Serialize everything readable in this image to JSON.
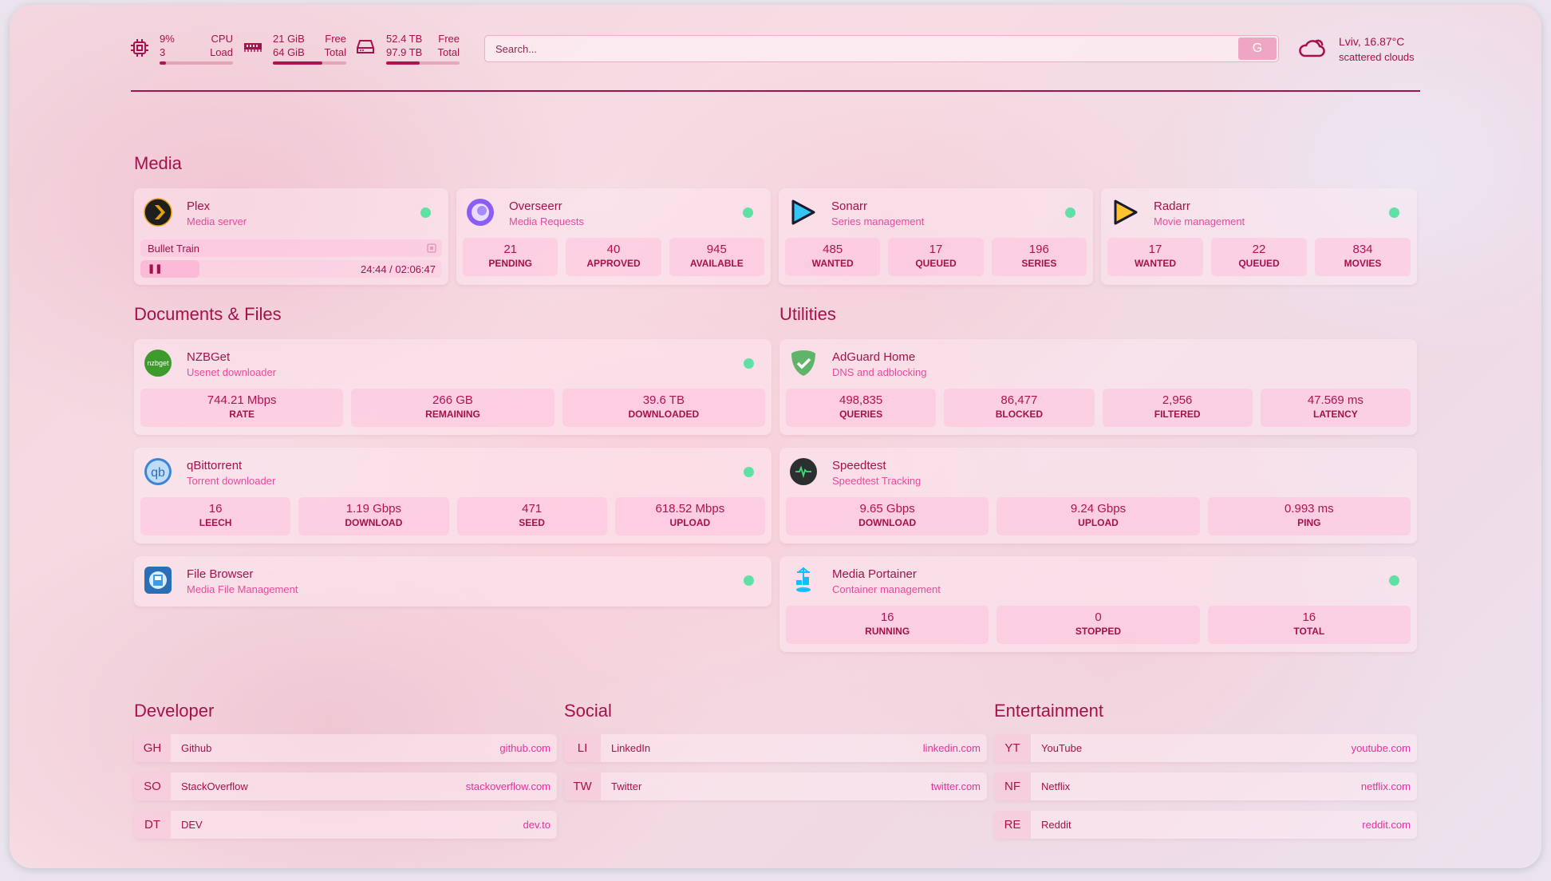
{
  "header": {
    "cpu": {
      "icon": "cpu-icon",
      "value": "9%",
      "label": "CPU",
      "value2": "3",
      "label2": "Load",
      "fill": 0.09
    },
    "memory": {
      "icon": "memory-icon",
      "value": "21 GiB",
      "label": "Free",
      "value2": "64 GiB",
      "label2": "Total",
      "fill": 0.67
    },
    "disk": {
      "icon": "disk-icon",
      "value": "52.4 TB",
      "label": "Free",
      "value2": "97.9 TB",
      "label2": "Total",
      "fill": 0.46
    },
    "search": {
      "placeholder": "Search...",
      "button": "G"
    },
    "weather": {
      "icon": "cloud-icon",
      "location_temp": "Lviv, 16.87°C",
      "description": "scattered clouds"
    }
  },
  "colors": {
    "accent": "#a5114a",
    "subtitle": "#e84a9b",
    "status_ok": "#5fe0a4",
    "link": "#e8309a"
  },
  "media": {
    "title": "Media",
    "plex": {
      "name": "Plex",
      "desc": "Media server",
      "now_playing": "Bullet Train",
      "time": "24:44 / 02:06:47",
      "progress": 0.195
    },
    "overseerr": {
      "name": "Overseerr",
      "desc": "Media Requests",
      "stats": [
        {
          "v": "21",
          "l": "PENDING"
        },
        {
          "v": "40",
          "l": "APPROVED"
        },
        {
          "v": "945",
          "l": "AVAILABLE"
        }
      ]
    },
    "sonarr": {
      "name": "Sonarr",
      "desc": "Series management",
      "stats": [
        {
          "v": "485",
          "l": "WANTED"
        },
        {
          "v": "17",
          "l": "QUEUED"
        },
        {
          "v": "196",
          "l": "SERIES"
        }
      ]
    },
    "radarr": {
      "name": "Radarr",
      "desc": "Movie management",
      "stats": [
        {
          "v": "17",
          "l": "WANTED"
        },
        {
          "v": "22",
          "l": "QUEUED"
        },
        {
          "v": "834",
          "l": "MOVIES"
        }
      ]
    }
  },
  "docs": {
    "title": "Documents & Files",
    "nzbget": {
      "name": "NZBGet",
      "desc": "Usenet downloader",
      "icon_text": "nzbget",
      "stats": [
        {
          "v": "744.21 Mbps",
          "l": "RATE"
        },
        {
          "v": "266 GB",
          "l": "REMAINING"
        },
        {
          "v": "39.6 TB",
          "l": "DOWNLOADED"
        }
      ]
    },
    "qbittorrent": {
      "name": "qBittorrent",
      "desc": "Torrent downloader",
      "icon_text": "qb",
      "stats": [
        {
          "v": "16",
          "l": "LEECH"
        },
        {
          "v": "1.19 Gbps",
          "l": "DOWNLOAD"
        },
        {
          "v": "471",
          "l": "SEED"
        },
        {
          "v": "618.52 Mbps",
          "l": "UPLOAD"
        }
      ]
    },
    "filebrowser": {
      "name": "File Browser",
      "desc": "Media File Management"
    }
  },
  "utilities": {
    "title": "Utilities",
    "adguard": {
      "name": "AdGuard Home",
      "desc": "DNS and adblocking",
      "stats": [
        {
          "v": "498,835",
          "l": "QUERIES"
        },
        {
          "v": "86,477",
          "l": "BLOCKED"
        },
        {
          "v": "2,956",
          "l": "FILTERED"
        },
        {
          "v": "47.569 ms",
          "l": "LATENCY"
        }
      ]
    },
    "speedtest": {
      "name": "Speedtest",
      "desc": "Speedtest Tracking",
      "stats": [
        {
          "v": "9.65 Gbps",
          "l": "DOWNLOAD"
        },
        {
          "v": "9.24 Gbps",
          "l": "UPLOAD"
        },
        {
          "v": "0.993 ms",
          "l": "PING"
        }
      ]
    },
    "portainer": {
      "name": "Media Portainer",
      "desc": "Container management",
      "stats": [
        {
          "v": "16",
          "l": "RUNNING"
        },
        {
          "v": "0",
          "l": "STOPPED"
        },
        {
          "v": "16",
          "l": "TOTAL"
        }
      ]
    }
  },
  "bookmarks": [
    {
      "title": "Developer",
      "items": [
        {
          "abbr": "GH",
          "name": "Github",
          "url": "github.com"
        },
        {
          "abbr": "SO",
          "name": "StackOverflow",
          "url": "stackoverflow.com"
        },
        {
          "abbr": "DT",
          "name": "DEV",
          "url": "dev.to"
        }
      ]
    },
    {
      "title": "Social",
      "items": [
        {
          "abbr": "LI",
          "name": "LinkedIn",
          "url": "linkedin.com"
        },
        {
          "abbr": "TW",
          "name": "Twitter",
          "url": "twitter.com"
        }
      ]
    },
    {
      "title": "Entertainment",
      "items": [
        {
          "abbr": "YT",
          "name": "YouTube",
          "url": "youtube.com"
        },
        {
          "abbr": "NF",
          "name": "Netflix",
          "url": "netflix.com"
        },
        {
          "abbr": "RE",
          "name": "Reddit",
          "url": "reddit.com"
        }
      ]
    }
  ]
}
